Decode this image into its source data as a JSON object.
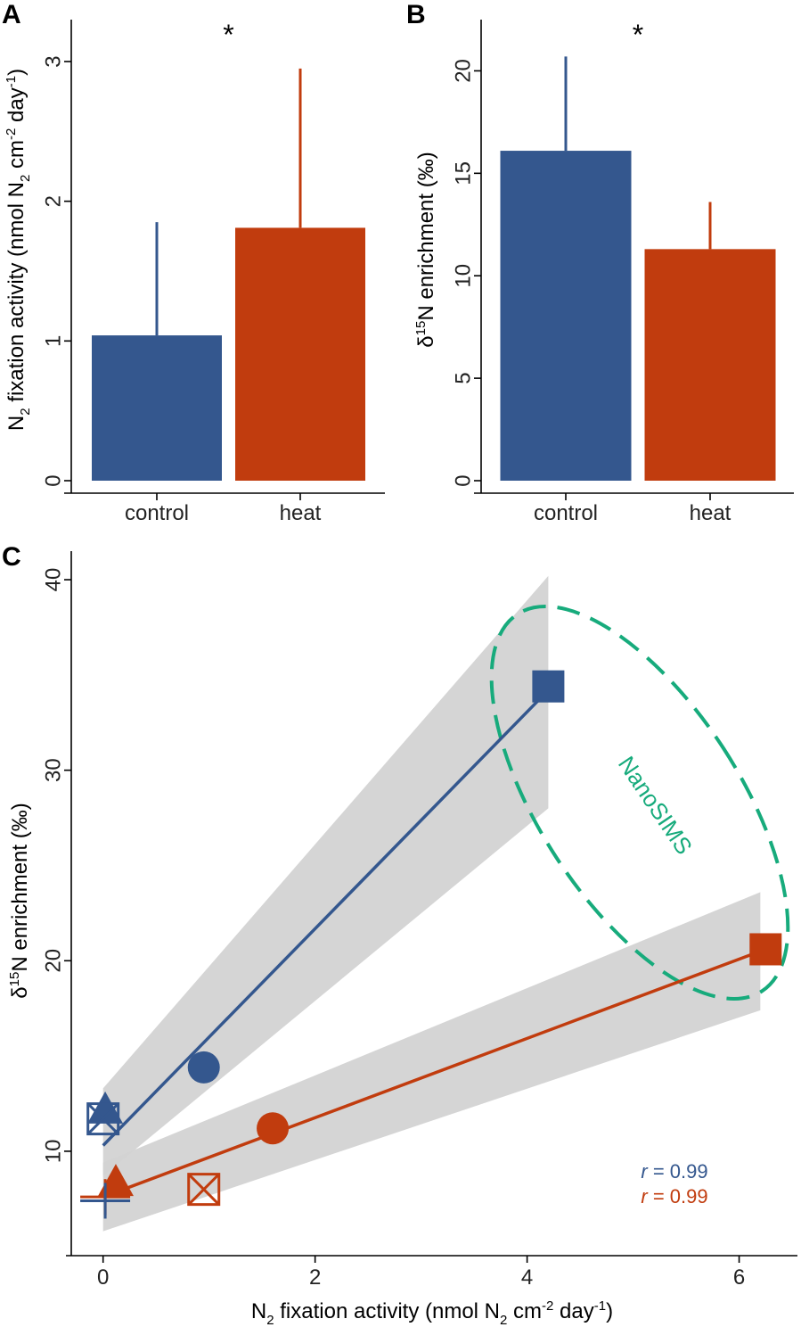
{
  "colors": {
    "control": "#34578E",
    "heat": "#C13C0E",
    "band": "#D3D3D3",
    "nanosims": "#17AB7C"
  },
  "chart_data": [
    {
      "panel": "A",
      "type": "bar",
      "categories": [
        "control",
        "heat"
      ],
      "values": [
        1.04,
        1.81
      ],
      "error_upper": [
        1.85,
        2.95
      ],
      "ylabel": {
        "base": "N",
        "sub": "2",
        "rest": " fixation activity (nmol N",
        "sub2": "2",
        "rest2": " cm",
        "sup": "-2",
        "rest3": " day",
        "sup2": "-1",
        "end": ")"
      },
      "ylim": [
        0,
        3.3
      ],
      "yticks": [
        0,
        1,
        2,
        3
      ],
      "significance": "*"
    },
    {
      "panel": "B",
      "type": "bar",
      "categories": [
        "control",
        "heat"
      ],
      "values": [
        16.1,
        11.3
      ],
      "error_upper": [
        20.7,
        13.6
      ],
      "ylabel": {
        "pre": "δ",
        "sup": "15",
        "rest": "N enrichment (‰)"
      },
      "ylim": [
        0,
        22.5
      ],
      "yticks": [
        0,
        5,
        10,
        15,
        20
      ],
      "significance": "*"
    },
    {
      "panel": "C",
      "type": "scatter",
      "xlabel": {
        "base": "N",
        "sub": "2",
        "rest": " fixation activity (nmol N",
        "sub2": "2",
        "rest2": " cm",
        "sup": "-2",
        "rest3": " day",
        "sup2": "-1",
        "end": ")"
      },
      "ylabel": {
        "pre": "δ",
        "sup": "15",
        "rest": "N enrichment (‰)"
      },
      "xlim": [
        -0.3,
        6.55
      ],
      "ylim": [
        4.8,
        41.5
      ],
      "xticks": [
        0,
        2,
        4,
        6
      ],
      "yticks": [
        10,
        20,
        30,
        40
      ],
      "series": [
        {
          "group": "control",
          "points": [
            {
              "x": 4.2,
              "y": 34.4,
              "marker": "square"
            },
            {
              "x": 0.95,
              "y": 14.4,
              "marker": "circle"
            },
            {
              "x": 0.02,
              "y": 12.2,
              "marker": "triangle"
            },
            {
              "x": 0.0,
              "y": 11.7,
              "marker": "square-x-open"
            },
            {
              "x": 0.02,
              "y": 7.4,
              "marker": "plus"
            }
          ],
          "fit": {
            "x": [
              0,
              4.2
            ],
            "y": [
              10.3,
              34.2
            ]
          },
          "band": {
            "x": [
              0,
              4.2
            ],
            "lower": [
              8.7,
              28.0
            ],
            "upper": [
              13.3,
              40.2
            ]
          },
          "r_label": "r",
          "r_value": " = 0.99"
        },
        {
          "group": "heat",
          "points": [
            {
              "x": 6.25,
              "y": 20.6,
              "marker": "square"
            },
            {
              "x": 1.6,
              "y": 11.2,
              "marker": "circle"
            },
            {
              "x": 0.12,
              "y": 8.4,
              "marker": "triangle"
            },
            {
              "x": 0.95,
              "y": 8.0,
              "marker": "square-x-open"
            },
            {
              "x": 0.02,
              "y": 7.6,
              "marker": "plus"
            }
          ],
          "fit": {
            "x": [
              0,
              6.2
            ],
            "y": [
              7.6,
              20.5
            ]
          },
          "band": {
            "x": [
              0,
              6.2
            ],
            "lower": [
              5.8,
              17.4
            ],
            "upper": [
              9.4,
              23.6
            ]
          },
          "r_label": "r",
          "r_value": " = 0.99"
        }
      ],
      "annotation": "NanoSIMS"
    }
  ]
}
